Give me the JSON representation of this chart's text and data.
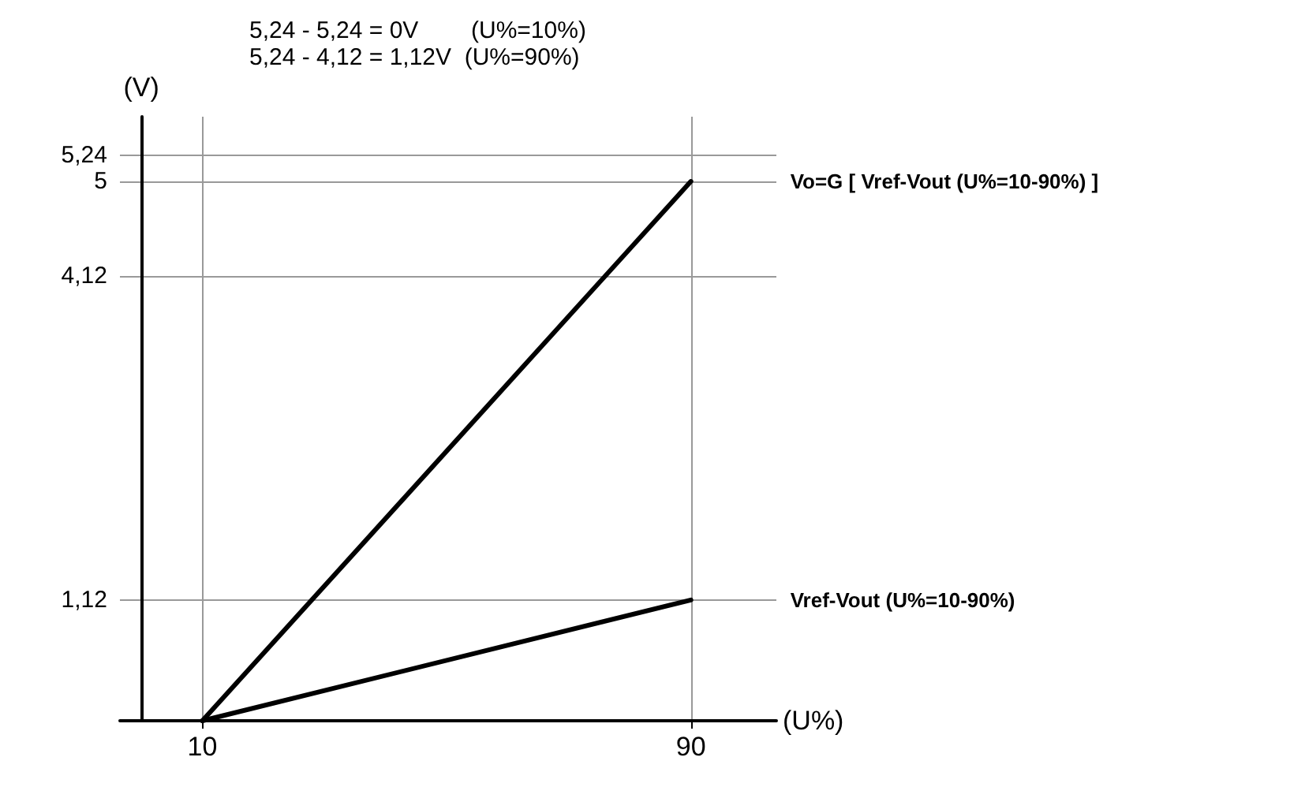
{
  "chart_data": {
    "type": "line",
    "xlabel": "(U%)",
    "ylabel": "(V)",
    "annotations": [
      "5,24 - 5,24 = 0V        (U%=10%)",
      "5,24 - 4,12 = 1,12V  (U%=90%)"
    ],
    "x": [
      10,
      90
    ],
    "series": [
      {
        "name": "Vo=G [ Vref-Vout (U%=10-90%) ]",
        "color": "#000000",
        "values": [
          0,
          5
        ]
      },
      {
        "name": "Vref-Vout (U%=10-90%)",
        "color": "#000000",
        "values": [
          0,
          1.12
        ]
      }
    ],
    "xlim": [
      -3.5,
      104
    ],
    "xticks": [
      10,
      90
    ],
    "ylim": [
      0,
      5.6
    ],
    "yticks": [
      {
        "value": 1.12,
        "label": "1,12"
      },
      {
        "value": 4.12,
        "label": "4,12"
      },
      5,
      {
        "value": 5.24,
        "label": "5,24"
      }
    ],
    "grid": true,
    "legend": false,
    "marker": "none",
    "line_style": "solid"
  }
}
